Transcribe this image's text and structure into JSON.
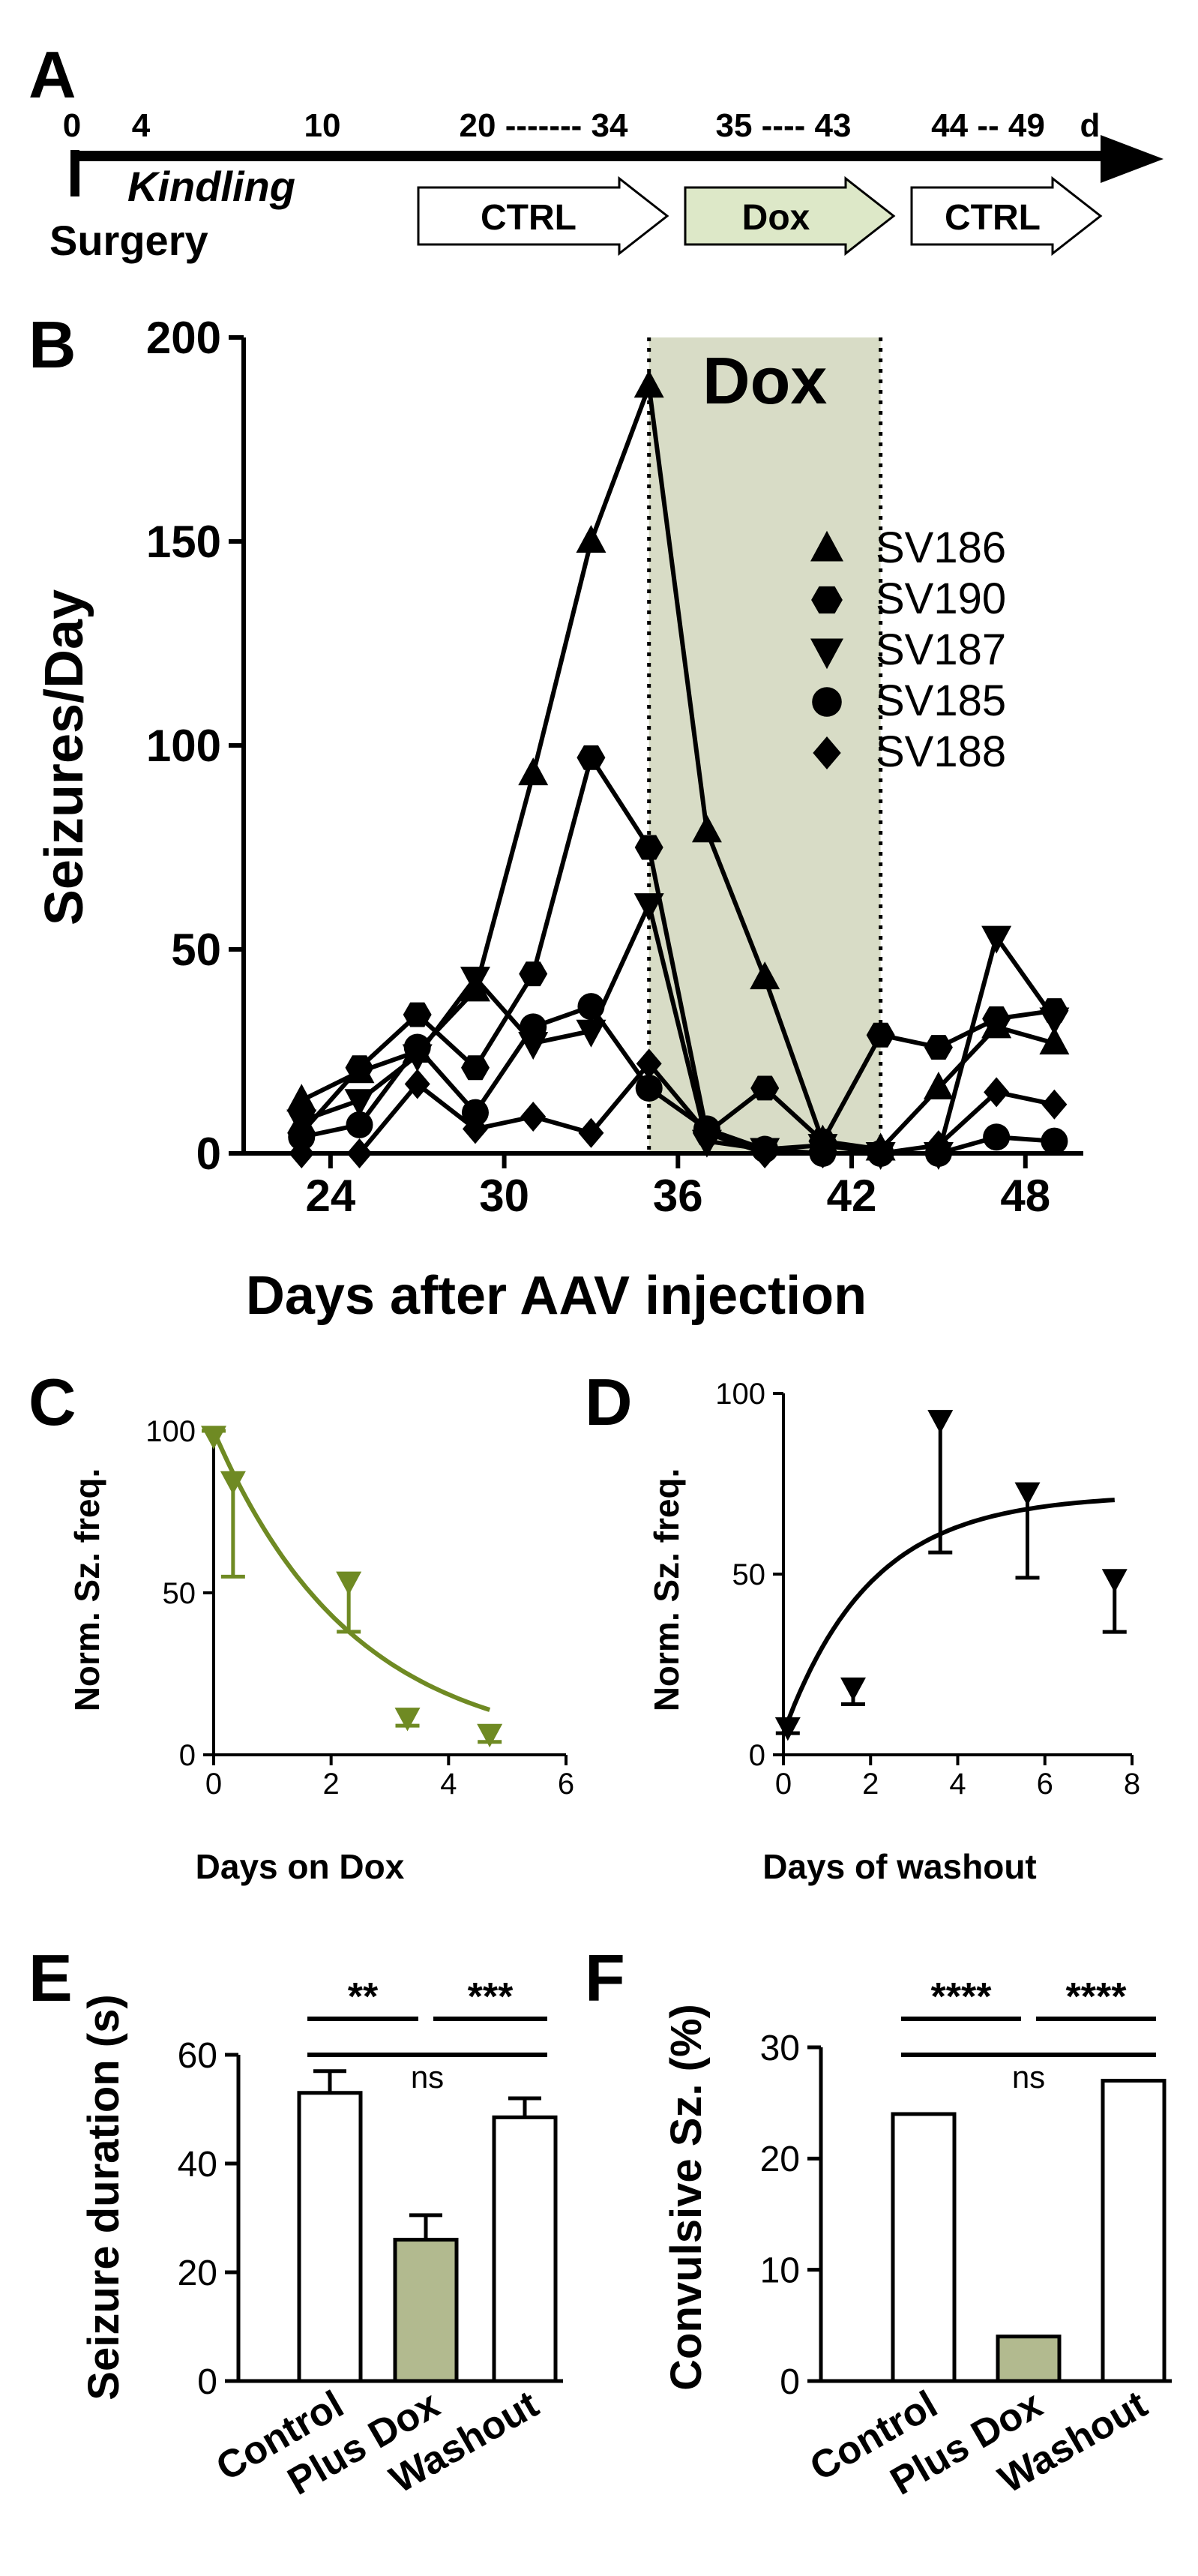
{
  "panels": {
    "a": {
      "letter": "A",
      "ticks": [
        "0",
        "4",
        "10",
        "20 ------- 34",
        "35 ---- 43",
        "44 -- 49",
        "d"
      ],
      "kindling": "Kindling",
      "surgery": "Surgery",
      "phases": [
        "CTRL",
        "Dox",
        "CTRL"
      ]
    },
    "b": {
      "letter": "B"
    },
    "c": {
      "letter": "C"
    },
    "d": {
      "letter": "D"
    },
    "e": {
      "letter": "E"
    },
    "f": {
      "letter": "F"
    }
  },
  "colors": {
    "black": "#000000",
    "dox_shade": "#d8dcc6",
    "dox_arrow": "#dde8c8",
    "curve_green": "#6f8a23",
    "bar_green": "#b2ba8f"
  },
  "chart_data": [
    {
      "id": "B",
      "type": "line",
      "title": "",
      "xlabel": "Days after AAV injection",
      "ylabel": "Seizures/Day",
      "xlim": [
        21,
        50
      ],
      "ylim": [
        0,
        200
      ],
      "xticks": [
        "24",
        "30",
        "36",
        "42",
        "48"
      ],
      "yticks": [
        "0",
        "50",
        "100",
        "150",
        "200"
      ],
      "shade": {
        "label": "Dox",
        "x": [
          35,
          43
        ]
      },
      "series": [
        {
          "name": "SV186",
          "marker": "triangle-up",
          "x": [
            23,
            25,
            27,
            29,
            31,
            33,
            35,
            37,
            39,
            41,
            43,
            45,
            47,
            49
          ],
          "values": [
            13,
            20,
            25,
            40,
            93,
            150,
            188,
            79,
            43,
            3,
            1,
            16,
            31,
            27
          ]
        },
        {
          "name": "SV190",
          "marker": "hexagon",
          "x": [
            23,
            25,
            27,
            29,
            31,
            33,
            35,
            37,
            39,
            41,
            43,
            45,
            47,
            49
          ],
          "values": [
            5,
            21,
            34,
            21,
            44,
            97,
            75,
            5,
            16,
            3,
            29,
            26,
            33,
            35
          ]
        },
        {
          "name": "SV187",
          "marker": "triangle-down",
          "x": [
            23,
            25,
            27,
            29,
            31,
            33,
            35,
            37,
            39,
            41,
            43,
            45,
            47,
            49
          ],
          "values": [
            8,
            13,
            24,
            43,
            27,
            30,
            61,
            3,
            1,
            2,
            0,
            0,
            53,
            33
          ]
        },
        {
          "name": "SV185",
          "marker": "circle",
          "x": [
            23,
            25,
            27,
            29,
            31,
            33,
            35,
            37,
            39,
            41,
            43,
            45,
            47,
            49
          ],
          "values": [
            4,
            7,
            26,
            10,
            31,
            36,
            16,
            6,
            1,
            0,
            0,
            0,
            4,
            3
          ]
        },
        {
          "name": "SV188",
          "marker": "diamond",
          "x": [
            23,
            25,
            27,
            29,
            31,
            33,
            35,
            37,
            39,
            41,
            43,
            45,
            47,
            49
          ],
          "values": [
            0,
            0,
            17,
            6,
            9,
            5,
            22,
            5,
            0,
            0,
            0,
            2,
            15,
            12
          ]
        }
      ]
    },
    {
      "id": "C",
      "type": "scatter",
      "xlabel": "Days on Dox",
      "ylabel": "Norm. Sz. freq.",
      "xlim": [
        0,
        6
      ],
      "ylim": [
        0,
        100
      ],
      "xticks": [
        "0",
        "2",
        "4",
        "6"
      ],
      "yticks": [
        "0",
        "50",
        "100"
      ],
      "x": [
        0,
        0.33,
        2.3,
        3.3,
        4.7
      ],
      "values": [
        100,
        86,
        55,
        13,
        8
      ],
      "error_low": [
        100,
        55,
        38,
        9,
        4
      ],
      "fit": {
        "model": "exponential decay",
        "plateau": 0,
        "span": 100,
        "k": 0.42,
        "x_end": 4.7
      }
    },
    {
      "id": "D",
      "type": "scatter",
      "xlabel": "Days of washout",
      "ylabel": "Norm. Sz. freq.",
      "xlim": [
        0,
        8
      ],
      "ylim": [
        0,
        100
      ],
      "xticks": [
        "0",
        "2",
        "4",
        "6",
        "8"
      ],
      "yticks": [
        "0",
        "50",
        "100"
      ],
      "x": [
        0.1,
        1.6,
        3.6,
        5.6,
        7.6
      ],
      "values": [
        9,
        20,
        94,
        74,
        50
      ],
      "error_low": [
        6,
        14,
        56,
        49,
        34
      ],
      "fit": {
        "model": "one-phase association",
        "plateau": 72,
        "start": 6,
        "k": 0.5,
        "x_end": 7.6
      }
    },
    {
      "id": "E",
      "type": "bar",
      "ylabel": "Seizure duration (s)",
      "ylim": [
        0,
        60
      ],
      "yticks": [
        "0",
        "20",
        "40",
        "60"
      ],
      "categories": [
        "Control",
        "Plus Dox",
        "Washout"
      ],
      "values": [
        53,
        26,
        48.5
      ],
      "errors": [
        4,
        4.5,
        3.5
      ],
      "significance": [
        {
          "between": [
            0,
            1
          ],
          "label": "**"
        },
        {
          "between": [
            1,
            2
          ],
          "label": "***"
        },
        {
          "between": [
            0,
            2
          ],
          "label": "ns"
        }
      ]
    },
    {
      "id": "F",
      "type": "bar",
      "ylabel": "Convulsive Sz. (%)",
      "ylim": [
        0,
        30
      ],
      "yticks": [
        "0",
        "10",
        "20",
        "30"
      ],
      "categories": [
        "Control",
        "Plus Dox",
        "Washout"
      ],
      "values": [
        24,
        4,
        27
      ],
      "significance": [
        {
          "between": [
            0,
            1
          ],
          "label": "****"
        },
        {
          "between": [
            1,
            2
          ],
          "label": "****"
        },
        {
          "between": [
            0,
            2
          ],
          "label": "ns"
        }
      ]
    }
  ]
}
